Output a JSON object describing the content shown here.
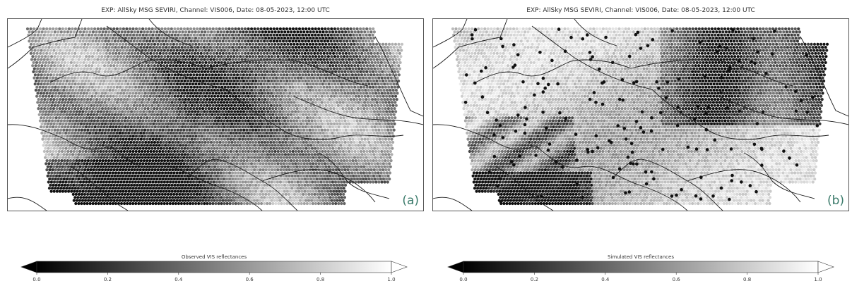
{
  "panels": [
    {
      "id": "a",
      "title": "EXP: AllSky MSG SEVIRI, Channel: VIS006, Date: 08-05-2023, 12:00 UTC",
      "tag": "(a)",
      "colorbar": {
        "label": "Observed VIS reflectances",
        "vmin": 0.0,
        "vmax": 1.0,
        "ticks": [
          "0.0",
          "0.2",
          "0.4",
          "0.6",
          "0.8",
          "1.0"
        ],
        "cmap": "greys_r",
        "extend": "both"
      }
    },
    {
      "id": "b",
      "title": "EXP: AllSky MSG SEVIRI, Channel: VIS006, Date: 08-05-2023, 12:00 UTC",
      "tag": "(b)",
      "colorbar": {
        "label": "Simulated VIS reflectances",
        "vmin": 0.0,
        "vmax": 1.0,
        "ticks": [
          "0.0",
          "0.2",
          "0.4",
          "0.6",
          "0.8",
          "1.0"
        ],
        "cmap": "greys_r",
        "extend": "both"
      }
    }
  ],
  "colors": {
    "border": "#222222",
    "frame": "#555555",
    "tag": "#3a7a6a"
  }
}
